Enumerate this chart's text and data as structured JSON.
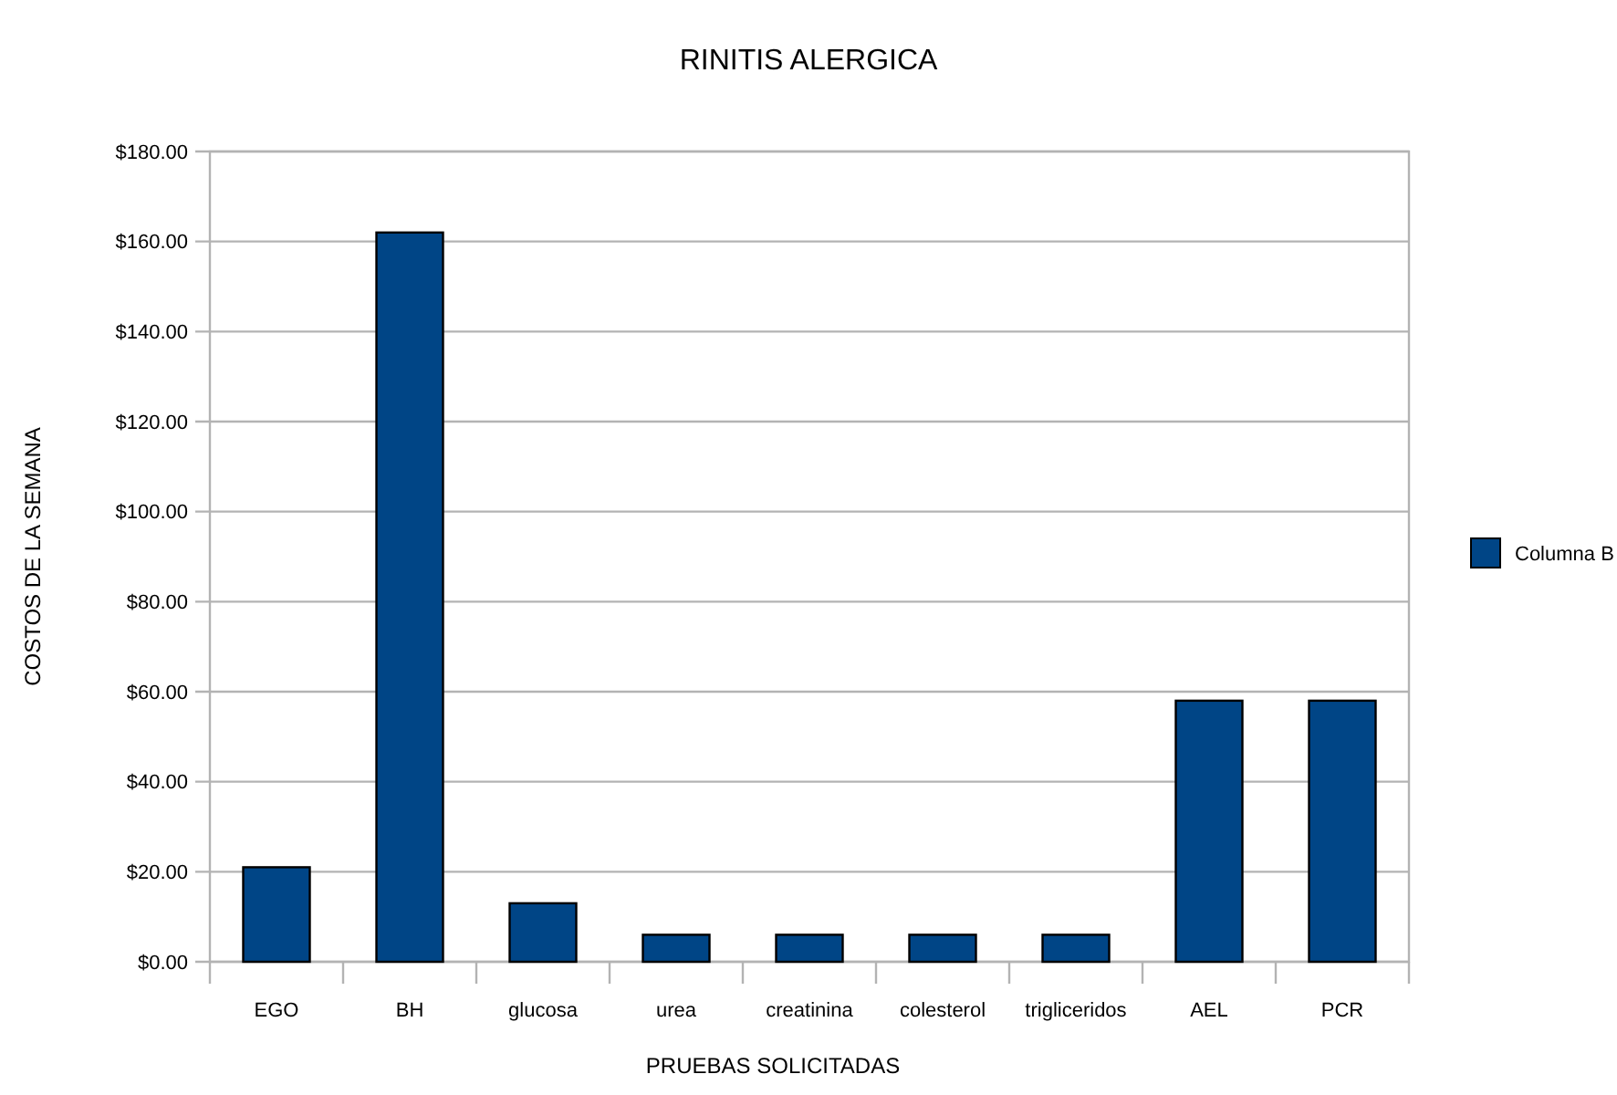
{
  "chart_data": {
    "type": "bar",
    "title": "RINITIS ALERGICA",
    "xlabel": "PRUEBAS SOLICITADAS",
    "ylabel": "COSTOS DE LA SEMANA",
    "categories": [
      "EGO",
      "BH",
      "glucosa",
      "urea",
      "creatinina",
      "colesterol",
      "trigliceridos",
      "AEL",
      "PCR"
    ],
    "series": [
      {
        "name": "Columna B",
        "color": "#004586",
        "values": [
          21,
          162,
          13,
          6,
          6,
          6,
          6,
          58,
          58
        ]
      }
    ],
    "ylim": [
      0,
      180
    ],
    "yticks": [
      {
        "value": 0,
        "label": "$0.00"
      },
      {
        "value": 20,
        "label": "$20.00"
      },
      {
        "value": 40,
        "label": "$40.00"
      },
      {
        "value": 60,
        "label": "$60.00"
      },
      {
        "value": 80,
        "label": "$80.00"
      },
      {
        "value": 100,
        "label": "$100.00"
      },
      {
        "value": 120,
        "label": "$120.00"
      },
      {
        "value": 140,
        "label": "$140.00"
      },
      {
        "value": 160,
        "label": "$160.00"
      },
      {
        "value": 180,
        "label": "$180.00"
      }
    ],
    "grid": "y",
    "legend": "right"
  }
}
